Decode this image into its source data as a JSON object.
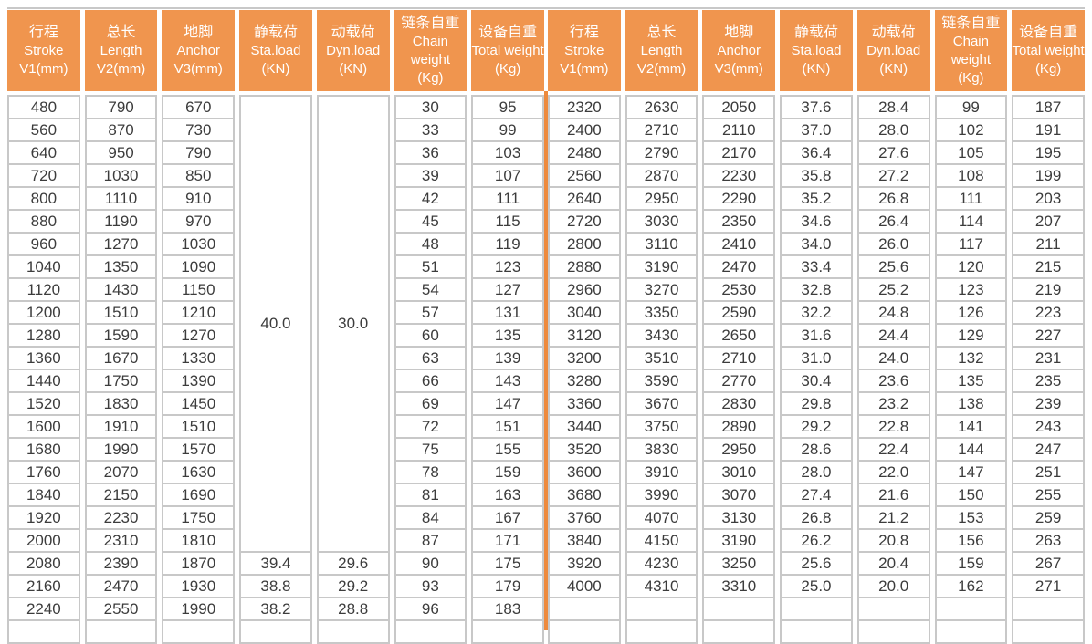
{
  "page": {
    "background": "#ffffff",
    "grid_color": "#c8c8c8",
    "header_bg": "#f0954e",
    "header_text_color": "#ffffff",
    "divider_color": "#ed8a3d",
    "text_color": "#3c3c3c"
  },
  "header_columns": [
    {
      "cn": "行程",
      "en": "Stroke",
      "unit": "V1(mm)"
    },
    {
      "cn": "总长",
      "en": "Length",
      "unit": "V2(mm)"
    },
    {
      "cn": "地脚",
      "en": "Anchor",
      "unit": "V3(mm)"
    },
    {
      "cn": "静载荷",
      "en": "Sta.load",
      "unit": "(KN)"
    },
    {
      "cn": "动载荷",
      "en": "Dyn.load",
      "unit": "(KN)"
    },
    {
      "cn": "链条自重",
      "en": "Chain weight",
      "unit": "(Kg)"
    },
    {
      "cn": "设备自重",
      "en": "Total weight",
      "unit": "(Kg)"
    }
  ],
  "left_table": {
    "merged_cells": [
      {
        "col": 3,
        "row_start": 0,
        "row_span": 20,
        "value": "40.0"
      },
      {
        "col": 4,
        "row_start": 0,
        "row_span": 20,
        "value": "30.0"
      }
    ],
    "rows": [
      [
        "480",
        "790",
        "670",
        null,
        null,
        "30",
        "95"
      ],
      [
        "560",
        "870",
        "730",
        null,
        null,
        "33",
        "99"
      ],
      [
        "640",
        "950",
        "790",
        null,
        null,
        "36",
        "103"
      ],
      [
        "720",
        "1030",
        "850",
        null,
        null,
        "39",
        "107"
      ],
      [
        "800",
        "1110",
        "910",
        null,
        null,
        "42",
        "111"
      ],
      [
        "880",
        "1190",
        "970",
        null,
        null,
        "45",
        "115"
      ],
      [
        "960",
        "1270",
        "1030",
        null,
        null,
        "48",
        "119"
      ],
      [
        "1040",
        "1350",
        "1090",
        null,
        null,
        "51",
        "123"
      ],
      [
        "1120",
        "1430",
        "1150",
        null,
        null,
        "54",
        "127"
      ],
      [
        "1200",
        "1510",
        "1210",
        null,
        null,
        "57",
        "131"
      ],
      [
        "1280",
        "1590",
        "1270",
        null,
        null,
        "60",
        "135"
      ],
      [
        "1360",
        "1670",
        "1330",
        null,
        null,
        "63",
        "139"
      ],
      [
        "1440",
        "1750",
        "1390",
        null,
        null,
        "66",
        "143"
      ],
      [
        "1520",
        "1830",
        "1450",
        null,
        null,
        "69",
        "147"
      ],
      [
        "1600",
        "1910",
        "1510",
        null,
        null,
        "72",
        "151"
      ],
      [
        "1680",
        "1990",
        "1570",
        null,
        null,
        "75",
        "155"
      ],
      [
        "1760",
        "2070",
        "1630",
        null,
        null,
        "78",
        "159"
      ],
      [
        "1840",
        "2150",
        "1690",
        null,
        null,
        "81",
        "163"
      ],
      [
        "1920",
        "2230",
        "1750",
        null,
        null,
        "84",
        "167"
      ],
      [
        "2000",
        "2310",
        "1810",
        null,
        null,
        "87",
        "171"
      ],
      [
        "2080",
        "2390",
        "1870",
        "39.4",
        "29.6",
        "90",
        "175"
      ],
      [
        "2160",
        "2470",
        "1930",
        "38.8",
        "29.2",
        "93",
        "179"
      ],
      [
        "2240",
        "2550",
        "1990",
        "38.2",
        "28.8",
        "96",
        "183"
      ]
    ]
  },
  "right_table": {
    "merged_cells": [],
    "rows": [
      [
        "2320",
        "2630",
        "2050",
        "37.6",
        "28.4",
        "99",
        "187"
      ],
      [
        "2400",
        "2710",
        "2110",
        "37.0",
        "28.0",
        "102",
        "191"
      ],
      [
        "2480",
        "2790",
        "2170",
        "36.4",
        "27.6",
        "105",
        "195"
      ],
      [
        "2560",
        "2870",
        "2230",
        "35.8",
        "27.2",
        "108",
        "199"
      ],
      [
        "2640",
        "2950",
        "2290",
        "35.2",
        "26.8",
        "111",
        "203"
      ],
      [
        "2720",
        "3030",
        "2350",
        "34.6",
        "26.4",
        "114",
        "207"
      ],
      [
        "2800",
        "3110",
        "2410",
        "34.0",
        "26.0",
        "117",
        "211"
      ],
      [
        "2880",
        "3190",
        "2470",
        "33.4",
        "25.6",
        "120",
        "215"
      ],
      [
        "2960",
        "3270",
        "2530",
        "32.8",
        "25.2",
        "123",
        "219"
      ],
      [
        "3040",
        "3350",
        "2590",
        "32.2",
        "24.8",
        "126",
        "223"
      ],
      [
        "3120",
        "3430",
        "2650",
        "31.6",
        "24.4",
        "129",
        "227"
      ],
      [
        "3200",
        "3510",
        "2710",
        "31.0",
        "24.0",
        "132",
        "231"
      ],
      [
        "3280",
        "3590",
        "2770",
        "30.4",
        "23.6",
        "135",
        "235"
      ],
      [
        "3360",
        "3670",
        "2830",
        "29.8",
        "23.2",
        "138",
        "239"
      ],
      [
        "3440",
        "3750",
        "2890",
        "29.2",
        "22.8",
        "141",
        "243"
      ],
      [
        "3520",
        "3830",
        "2950",
        "28.6",
        "22.4",
        "144",
        "247"
      ],
      [
        "3600",
        "3910",
        "3010",
        "28.0",
        "22.0",
        "147",
        "251"
      ],
      [
        "3680",
        "3990",
        "3070",
        "27.4",
        "21.6",
        "150",
        "255"
      ],
      [
        "3760",
        "4070",
        "3130",
        "26.8",
        "21.2",
        "153",
        "259"
      ],
      [
        "3840",
        "4150",
        "3190",
        "26.2",
        "20.8",
        "156",
        "263"
      ],
      [
        "3920",
        "4230",
        "3250",
        "25.6",
        "20.4",
        "159",
        "267"
      ],
      [
        "4000",
        "4310",
        "3310",
        "25.0",
        "20.0",
        "162",
        "271"
      ],
      [
        "",
        "",
        "",
        "",
        "",
        "",
        ""
      ]
    ]
  }
}
